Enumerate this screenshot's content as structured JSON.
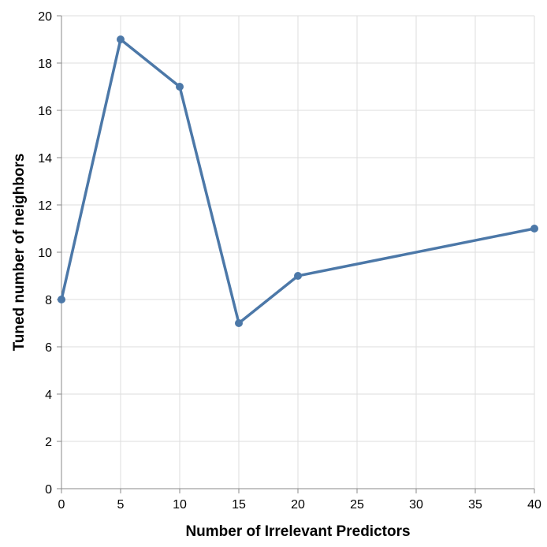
{
  "chart_data": {
    "type": "line",
    "xlabel": "Number of Irrelevant Predictors",
    "ylabel": "Tuned number of neighbors",
    "xlim": [
      0,
      40
    ],
    "ylim": [
      0,
      20
    ],
    "x_ticks": [
      0,
      5,
      10,
      15,
      20,
      25,
      30,
      35,
      40
    ],
    "y_ticks": [
      0,
      2,
      4,
      6,
      8,
      10,
      12,
      14,
      16,
      18,
      20
    ],
    "grid": true,
    "series": [
      {
        "color": "#4c78a8",
        "x": [
          0,
          5,
          10,
          15,
          20,
          40
        ],
        "values": [
          8,
          19,
          17,
          7,
          9,
          11
        ]
      }
    ]
  }
}
